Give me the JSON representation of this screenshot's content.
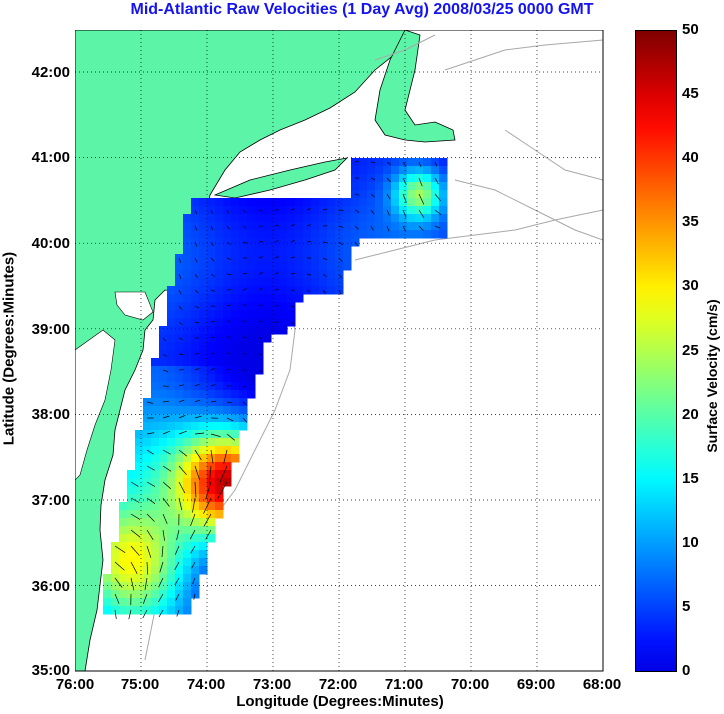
{
  "title": "Mid-Atlantic Raw Velocities (1 Day Avg) 2008/03/25 0000 GMT",
  "x_axis": {
    "label": "Longitude (Degrees:Minutes)",
    "ticks": [
      "76:00",
      "75:00",
      "74:00",
      "73:00",
      "72:00",
      "71:00",
      "70:00",
      "69:00",
      "68:00"
    ]
  },
  "y_axis": {
    "label": "Latitude (Degrees:Minutes)",
    "ticks": [
      "42:00",
      "41:00",
      "40:00",
      "39:00",
      "38:00",
      "37:00",
      "36:00",
      "35:00"
    ]
  },
  "colorbar": {
    "label": "Surface Velocity (cm/s)",
    "ticks": [
      "50",
      "45",
      "40",
      "35",
      "30",
      "25",
      "20",
      "15",
      "10",
      "5",
      "0"
    ],
    "range": [
      0,
      50
    ],
    "colormap": "jet"
  },
  "colors": {
    "land": "#5cf5a8",
    "title": "#1414f0",
    "coastline_offshore": "#8c8c8c",
    "bathymetry": "#a8a8a8"
  }
}
